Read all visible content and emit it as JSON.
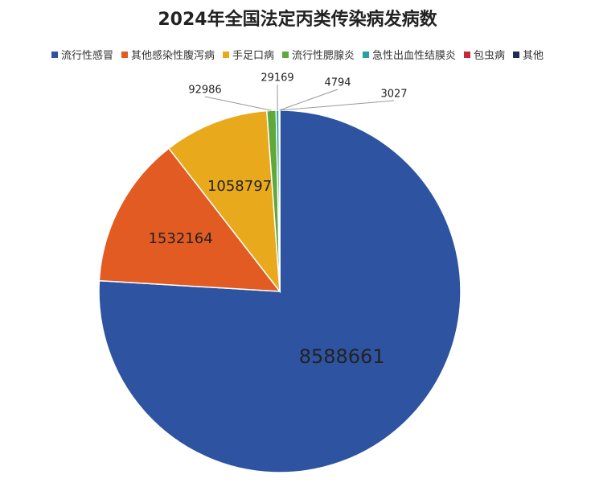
{
  "chart_data": {
    "type": "pie",
    "title": "2024年全国法定丙类传染病发病数",
    "categories": [
      "流行性感冒",
      "其他感染性腹泻病",
      "手足口病",
      "流行性腮腺炎",
      "急性出血性结膜炎",
      "包虫病",
      "其他"
    ],
    "values": [
      8588661,
      1532164,
      1058797,
      92986,
      29169,
      4794,
      3027
    ],
    "colors": [
      "#2e53a0",
      "#e15b22",
      "#e8a91c",
      "#5fa83a",
      "#26a0a0",
      "#c8283c",
      "#1f2d5a"
    ],
    "legend": "top"
  }
}
